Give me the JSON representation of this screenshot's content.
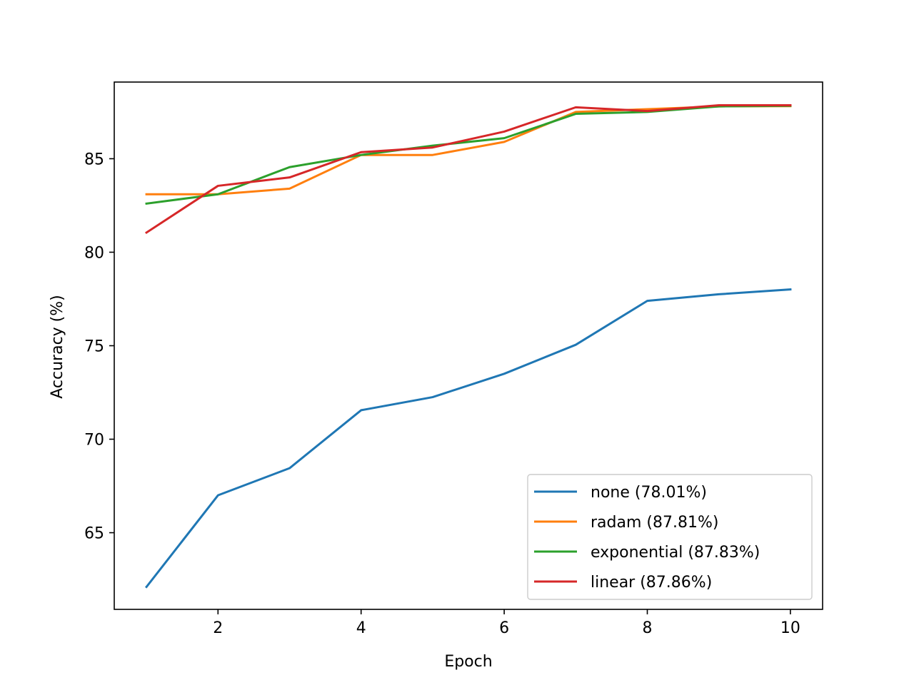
{
  "chart_data": {
    "type": "line",
    "title": "",
    "xlabel": "Epoch",
    "ylabel": "Accuracy (%)",
    "xlim": [
      0.55,
      10.45
    ],
    "ylim": [
      60.9,
      89.1
    ],
    "xticks": [
      2,
      4,
      6,
      8,
      10
    ],
    "yticks": [
      65,
      70,
      75,
      80,
      85
    ],
    "grid": false,
    "legend_position": "lower-right",
    "x": [
      1,
      2,
      3,
      4,
      5,
      6,
      7,
      8,
      9,
      10
    ],
    "series": [
      {
        "name": "none (78.01%)",
        "color": "#1f77b4",
        "values": [
          62.1,
          67.0,
          68.45,
          71.55,
          72.25,
          73.5,
          75.05,
          77.4,
          77.75,
          78.01
        ]
      },
      {
        "name": "radam (87.81%)",
        "color": "#ff7f0e",
        "values": [
          83.1,
          83.1,
          83.4,
          85.2,
          85.2,
          85.9,
          87.5,
          87.65,
          87.8,
          87.81
        ]
      },
      {
        "name": "exponential (87.83%)",
        "color": "#2ca02c",
        "values": [
          82.6,
          83.1,
          84.55,
          85.2,
          85.7,
          86.1,
          87.4,
          87.5,
          87.8,
          87.83
        ]
      },
      {
        "name": "linear (87.86%)",
        "color": "#d62728",
        "values": [
          81.05,
          83.55,
          84.0,
          85.35,
          85.6,
          86.45,
          87.75,
          87.55,
          87.86,
          87.86
        ]
      }
    ]
  }
}
